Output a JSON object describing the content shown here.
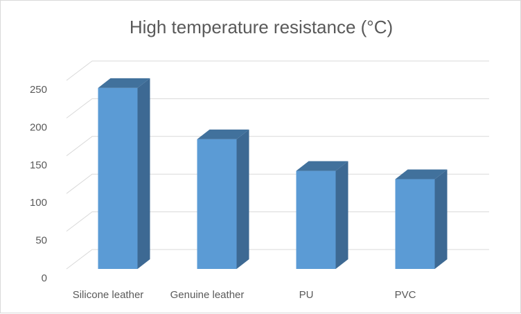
{
  "chart_data": {
    "type": "bar",
    "title": "High temperature resistance (°C)",
    "categories": [
      "Silicone leather",
      "Genuine leather",
      "PU",
      "PVC"
    ],
    "values": [
      240,
      172,
      130,
      119
    ],
    "y_ticks": [
      "0",
      "50",
      "100",
      "150",
      "200",
      "250"
    ],
    "ylim": [
      0,
      250
    ],
    "xlabel": "",
    "ylabel": "",
    "grid": true,
    "legend": "none",
    "style": "3d-column",
    "colors": {
      "front": "#5b9bd5",
      "side": "#3d6993",
      "top": "#41719c",
      "grid": "#d9d9d9",
      "text": "#595959"
    }
  }
}
